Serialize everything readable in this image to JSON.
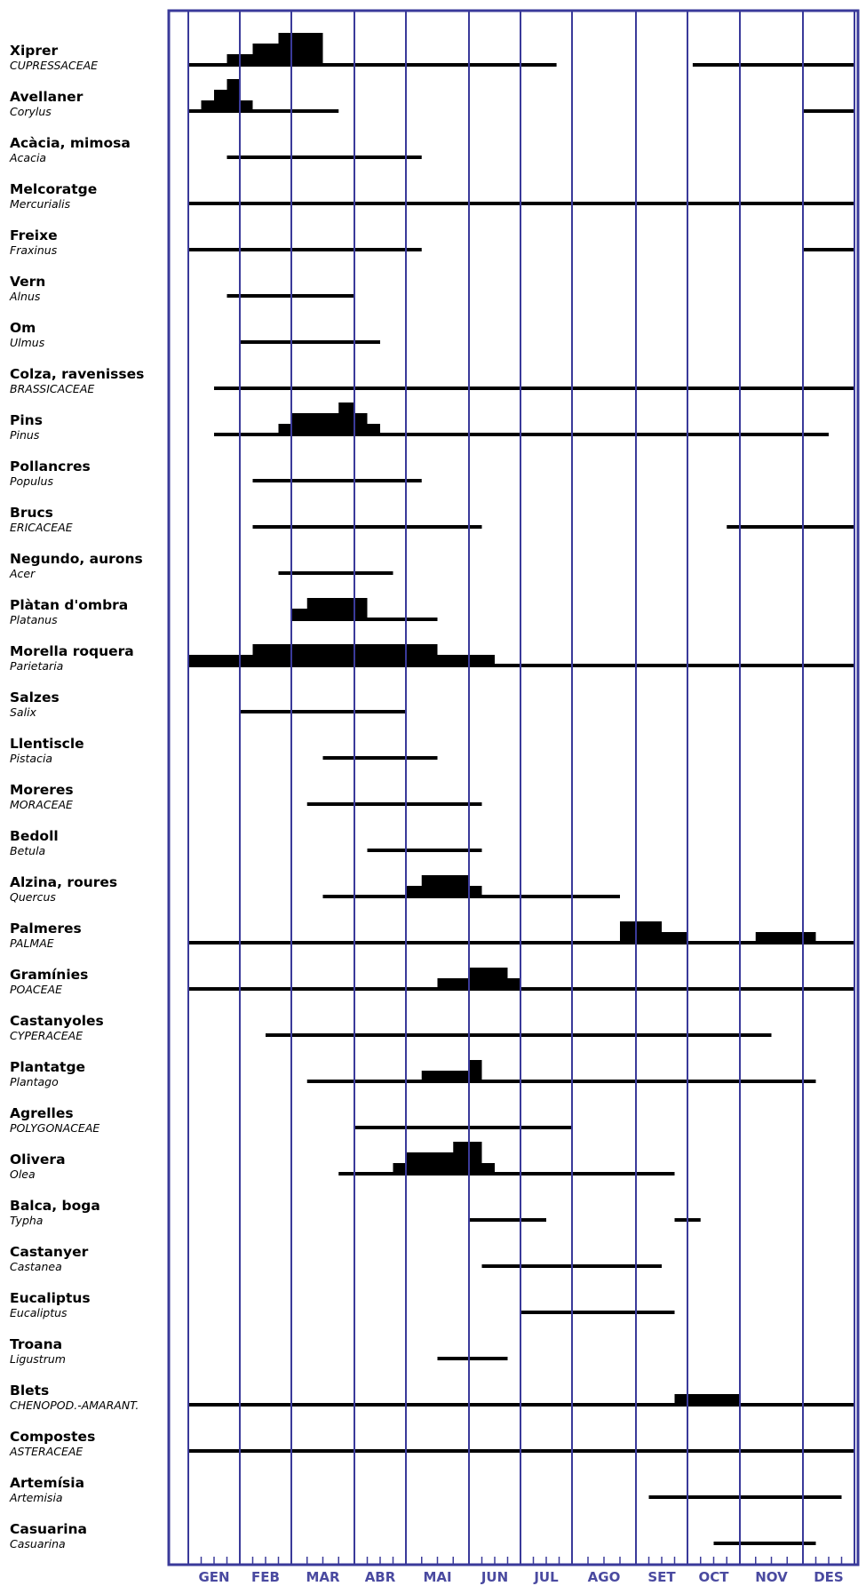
{
  "colors": {
    "frame": "#3a3a9a",
    "bars": "#000000",
    "month_labels": "#4a4aa0"
  },
  "chart_data": {
    "type": "gantt",
    "x_unit": "month (1 = GEN ... 12 = DES, fractional = position within month)",
    "months": [
      "GEN",
      "FEB",
      "MAR",
      "ABR",
      "MAI",
      "JUN",
      "JUL",
      "AGO",
      "SET",
      "OCT",
      "NOV",
      "DES"
    ],
    "rows": [
      {
        "common": "Xiprer",
        "scientific": "CUPRESSACEAE",
        "periods": [
          [
            1.0,
            7.7
          ],
          [
            10.1,
            13.0
          ]
        ],
        "peaks": [
          [
            1.75,
            3.5,
            1
          ],
          [
            2.25,
            3.25,
            2
          ],
          [
            2.75,
            3.5,
            3
          ]
        ]
      },
      {
        "common": "Avellaner",
        "scientific": "Corylus",
        "periods": [
          [
            1.0,
            3.75
          ],
          [
            12.0,
            13.0
          ]
        ],
        "peaks": [
          [
            1.25,
            2.25,
            1
          ],
          [
            1.5,
            2.0,
            2
          ],
          [
            1.75,
            2.0,
            3
          ]
        ]
      },
      {
        "common": "Acàcia, mimosa",
        "scientific": "Acacia",
        "periods": [
          [
            1.75,
            5.25
          ]
        ],
        "peaks": []
      },
      {
        "common": "Melcoratge",
        "scientific": "Mercurialis",
        "periods": [
          [
            1.0,
            13.0
          ]
        ],
        "peaks": []
      },
      {
        "common": "Freixe",
        "scientific": "Fraxinus",
        "periods": [
          [
            1.0,
            5.25
          ],
          [
            12.0,
            13.0
          ]
        ],
        "peaks": []
      },
      {
        "common": "Vern",
        "scientific": "Alnus",
        "periods": [
          [
            1.75,
            4.0
          ]
        ],
        "peaks": []
      },
      {
        "common": "Om",
        "scientific": "Ulmus",
        "periods": [
          [
            2.0,
            4.5
          ]
        ],
        "peaks": []
      },
      {
        "common": "Colza, ravenisses",
        "scientific": "BRASSICACEAE",
        "periods": [
          [
            1.5,
            13.0
          ]
        ],
        "peaks": []
      },
      {
        "common": "Pins",
        "scientific": "Pinus",
        "periods": [
          [
            1.5,
            12.5
          ]
        ],
        "peaks": [
          [
            2.75,
            4.5,
            1
          ],
          [
            3.0,
            4.25,
            2
          ],
          [
            3.75,
            4.0,
            3
          ]
        ]
      },
      {
        "common": "Pollancres",
        "scientific": "Populus",
        "periods": [
          [
            2.25,
            5.25
          ]
        ],
        "peaks": []
      },
      {
        "common": "Brucs",
        "scientific": "ERICACEAE",
        "periods": [
          [
            2.25,
            6.25
          ],
          [
            10.75,
            13.0
          ]
        ],
        "peaks": []
      },
      {
        "common": "Negundo, aurons",
        "scientific": "Acer",
        "periods": [
          [
            2.75,
            4.75
          ]
        ],
        "peaks": []
      },
      {
        "common": "Plàtan d'ombra",
        "scientific": "Platanus",
        "periods": [
          [
            3.0,
            5.5
          ]
        ],
        "peaks": [
          [
            3.0,
            4.25,
            1
          ],
          [
            3.25,
            4.25,
            2
          ]
        ]
      },
      {
        "common": "Morella roquera",
        "scientific": "Parietaria",
        "periods": [
          [
            1.0,
            13.0
          ]
        ],
        "peaks": [
          [
            1.0,
            6.5,
            1
          ],
          [
            2.25,
            5.5,
            2
          ]
        ]
      },
      {
        "common": "Salzes",
        "scientific": "Salix",
        "periods": [
          [
            2.0,
            5.0
          ]
        ],
        "peaks": []
      },
      {
        "common": "Llentiscle",
        "scientific": "Pistacia",
        "periods": [
          [
            3.5,
            5.5
          ]
        ],
        "peaks": []
      },
      {
        "common": "Moreres",
        "scientific": "MORACEAE",
        "periods": [
          [
            3.25,
            6.25
          ]
        ],
        "peaks": []
      },
      {
        "common": "Bedoll",
        "scientific": "Betula",
        "periods": [
          [
            4.25,
            6.25
          ]
        ],
        "peaks": []
      },
      {
        "common": "Alzina, roures",
        "scientific": "Quercus",
        "periods": [
          [
            3.5,
            8.75
          ]
        ],
        "peaks": [
          [
            5.0,
            6.25,
            1
          ],
          [
            5.25,
            6.0,
            2
          ]
        ]
      },
      {
        "common": "Palmeres",
        "scientific": "PALMAE",
        "periods": [
          [
            1.0,
            13.0
          ]
        ],
        "peaks": [
          [
            8.75,
            10.0,
            1
          ],
          [
            11.5,
            12.25,
            1
          ],
          [
            8.75,
            9.5,
            2
          ],
          [
            11.25,
            12.25,
            1
          ]
        ]
      },
      {
        "common": "Gramínies",
        "scientific": "POACEAE",
        "periods": [
          [
            1.0,
            13.0
          ]
        ],
        "peaks": [
          [
            5.5,
            7.0,
            1
          ],
          [
            6.0,
            6.75,
            2
          ]
        ]
      },
      {
        "common": "Castanyoles",
        "scientific": "CYPERACEAE",
        "periods": [
          [
            2.5,
            11.5
          ]
        ],
        "peaks": []
      },
      {
        "common": "Plantatge",
        "scientific": "Plantago",
        "periods": [
          [
            3.25,
            12.25
          ]
        ],
        "peaks": [
          [
            5.25,
            6.25,
            1
          ],
          [
            6.0,
            6.25,
            2
          ]
        ]
      },
      {
        "common": "Agrelles",
        "scientific": "POLYGONACEAE",
        "periods": [
          [
            4.0,
            8.0
          ]
        ],
        "peaks": []
      },
      {
        "common": "Olivera",
        "scientific": "Olea",
        "periods": [
          [
            3.75,
            9.75
          ]
        ],
        "peaks": [
          [
            4.75,
            6.5,
            1
          ],
          [
            5.0,
            6.25,
            2
          ],
          [
            5.75,
            6.25,
            3
          ]
        ]
      },
      {
        "common": "Balca, boga",
        "scientific": "Typha",
        "periods": [
          [
            6.0,
            7.5
          ],
          [
            9.75,
            10.25
          ]
        ],
        "peaks": []
      },
      {
        "common": "Castanyer",
        "scientific": "Castanea",
        "periods": [
          [
            6.25,
            9.5
          ]
        ],
        "peaks": []
      },
      {
        "common": "Eucaliptus",
        "scientific": "Eucaliptus",
        "periods": [
          [
            7.0,
            9.75
          ]
        ],
        "peaks": []
      },
      {
        "common": "Troana",
        "scientific": "Ligustrum",
        "periods": [
          [
            5.5,
            6.75
          ]
        ],
        "peaks": []
      },
      {
        "common": "Blets",
        "scientific": "CHENOPOD.-AMARANT.",
        "periods": [
          [
            1.0,
            13.0
          ]
        ],
        "peaks": [
          [
            9.75,
            11.0,
            1
          ]
        ]
      },
      {
        "common": "Compostes",
        "scientific": "ASTERACEAE",
        "periods": [
          [
            1.0,
            13.0
          ]
        ],
        "peaks": []
      },
      {
        "common": "Artemísia",
        "scientific": "Artemisia",
        "periods": [
          [
            9.25,
            12.75
          ]
        ],
        "peaks": []
      },
      {
        "common": "Casuarina",
        "scientific": "Casuarina",
        "periods": [
          [
            10.5,
            12.25
          ]
        ],
        "peaks": []
      }
    ]
  }
}
